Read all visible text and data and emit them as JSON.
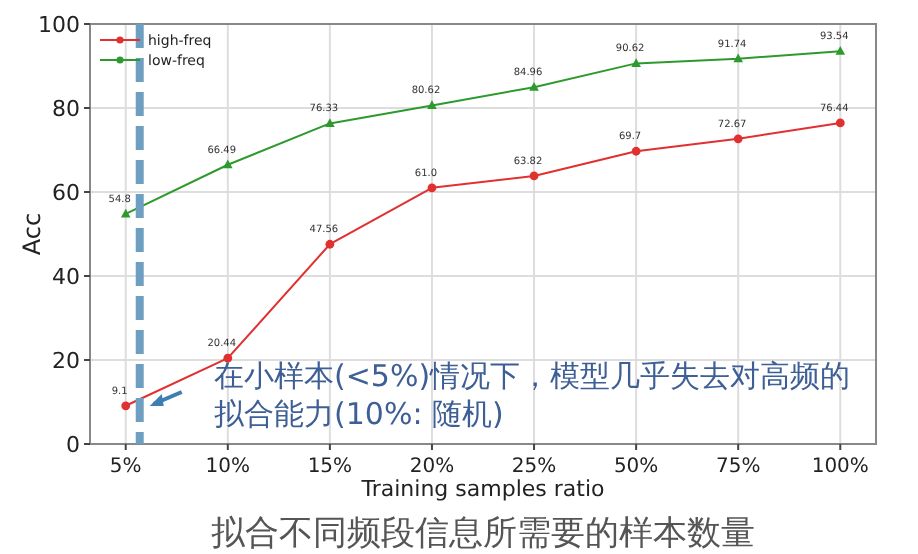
{
  "chart_data": {
    "type": "line",
    "title": "拟合不同频段信息所需要的样本数量",
    "xlabel": "Training samples ratio",
    "ylabel": "Acc",
    "categories": [
      "5%",
      "10%",
      "15%",
      "20%",
      "25%",
      "50%",
      "75%",
      "100%"
    ],
    "series": [
      {
        "name": "high-freq",
        "color": "#e03030",
        "marker": "circle",
        "values": [
          9.1,
          20.44,
          47.56,
          61.0,
          63.82,
          69.7,
          72.67,
          76.44
        ],
        "value_labels": [
          "9.1",
          "20.44",
          "47.56",
          "61.0",
          "63.82",
          "69.7",
          "72.67",
          "76.44"
        ]
      },
      {
        "name": "low-freq",
        "color": "#2e9a2e",
        "marker": "triangle",
        "values": [
          54.8,
          66.49,
          76.33,
          80.62,
          84.96,
          90.62,
          91.74,
          93.54
        ],
        "value_labels": [
          "54.8",
          "66.49",
          "76.33",
          "80.62",
          "84.96",
          "90.62",
          "91.74",
          "93.54"
        ]
      }
    ],
    "ylim": [
      0,
      100
    ],
    "yticks": [
      0,
      20,
      40,
      60,
      80,
      100
    ],
    "grid": true,
    "legend": "top left",
    "line_style": "solid",
    "ref_lines": [
      {
        "axis": "x",
        "value": "5%",
        "color": "#6f9fc0",
        "line_style": "dashed"
      }
    ],
    "annotations": [
      {
        "text": "在小样本(<5%)情况下，模型几乎失去对高频的拟合能力(10%: 随机)",
        "x": "5%",
        "y": 10
      }
    ]
  }
}
